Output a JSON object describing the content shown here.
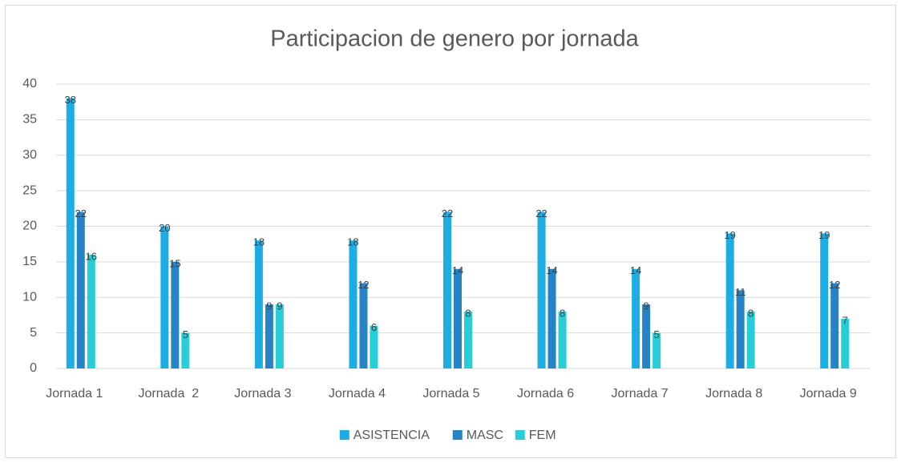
{
  "chart_data": {
    "type": "bar",
    "title": "Participacion de genero por jornada",
    "categories": [
      "Jornada 1",
      "Jornada  2",
      "Jornada 3",
      "Jornada 4",
      "Jornada 5",
      "Jornada 6",
      "Jornada 7",
      "Jornada 8",
      "Jornada 9"
    ],
    "series": [
      {
        "name": "ASISTENCIA",
        "color": "#1cade4",
        "values": [
          38,
          20,
          18,
          18,
          22,
          22,
          14,
          19,
          19
        ]
      },
      {
        "name": "MASC",
        "color": "#2683c6",
        "values": [
          22,
          15,
          9,
          12,
          14,
          14,
          9,
          11,
          12
        ]
      },
      {
        "name": "FEM",
        "color": "#27ced7",
        "values": [
          16,
          5,
          9,
          6,
          8,
          8,
          5,
          8,
          7
        ]
      }
    ],
    "ylim": [
      0,
      40
    ],
    "yticks": [
      0,
      5,
      10,
      15,
      20,
      25,
      30,
      35,
      40
    ],
    "grid": true,
    "data_labels": true,
    "legend": "bottom"
  }
}
